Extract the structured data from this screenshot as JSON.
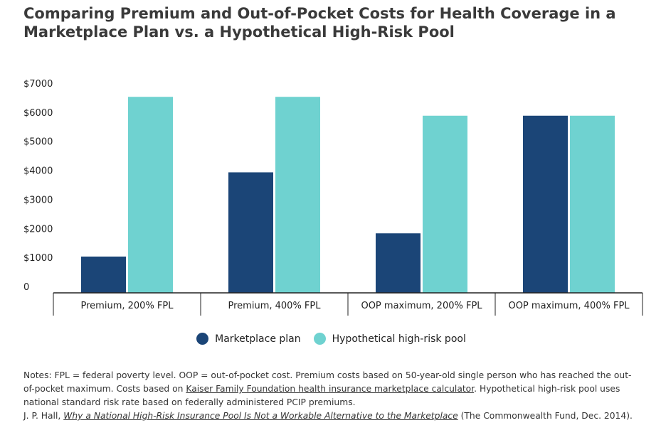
{
  "title": {
    "line1": "Comparing Premium and Out-of-Pocket Costs for Health Coverage in a",
    "line2": "Marketplace Plan vs. a Hypothetical High-Risk Pool"
  },
  "colors": {
    "marketplace": "#1b4577",
    "highrisk": "#6fd2d0",
    "axis": "#222222"
  },
  "chart_data": {
    "type": "bar",
    "title": "Comparing Premium and Out-of-Pocket Costs for Health Coverage in a Marketplace Plan vs. a Hypothetical High-Risk Pool",
    "categories": [
      "Premium, 200% FPL",
      "Premium, 400% FPL",
      "OOP maximum, 200% FPL",
      "OOP maximum, 400% FPL"
    ],
    "series": [
      {
        "name": "Marketplace plan",
        "color": "#1b4577",
        "values": [
          1250,
          4150,
          2050,
          6100
        ]
      },
      {
        "name": "Hypothetical high-risk pool",
        "color": "#6fd2d0",
        "values": [
          6750,
          6750,
          6100,
          6100
        ]
      }
    ],
    "yticks": [
      0,
      1000,
      2000,
      3000,
      4000,
      5000,
      6000,
      7000
    ],
    "ytick_labels": [
      "0",
      "$1000",
      "$2000",
      "$3000",
      "$4000",
      "$5000",
      "$6000",
      "$7000"
    ],
    "ylim": [
      0,
      7000
    ],
    "xlabel": "",
    "ylabel": "",
    "grid": false,
    "legend": "bottom-center"
  },
  "notes": {
    "part1": "Notes: FPL = federal poverty level. OOP = out-of-pocket cost. Premium costs based on 50-year-old single person who has reached the out-of-pocket maximum. Costs based on ",
    "link1": "Kaiser Family Foundation health insurance marketplace calculator",
    "part2": ". Hypothetical high-risk pool uses national standard risk rate based on federally administered PCIP premiums.",
    "source_prefix": "J. P. Hall, ",
    "source_link": "Why a National High-Risk Insurance Pool Is Not a Workable Alternative to the Marketplace",
    "source_suffix": " (The Commonwealth Fund, Dec. 2014)."
  }
}
